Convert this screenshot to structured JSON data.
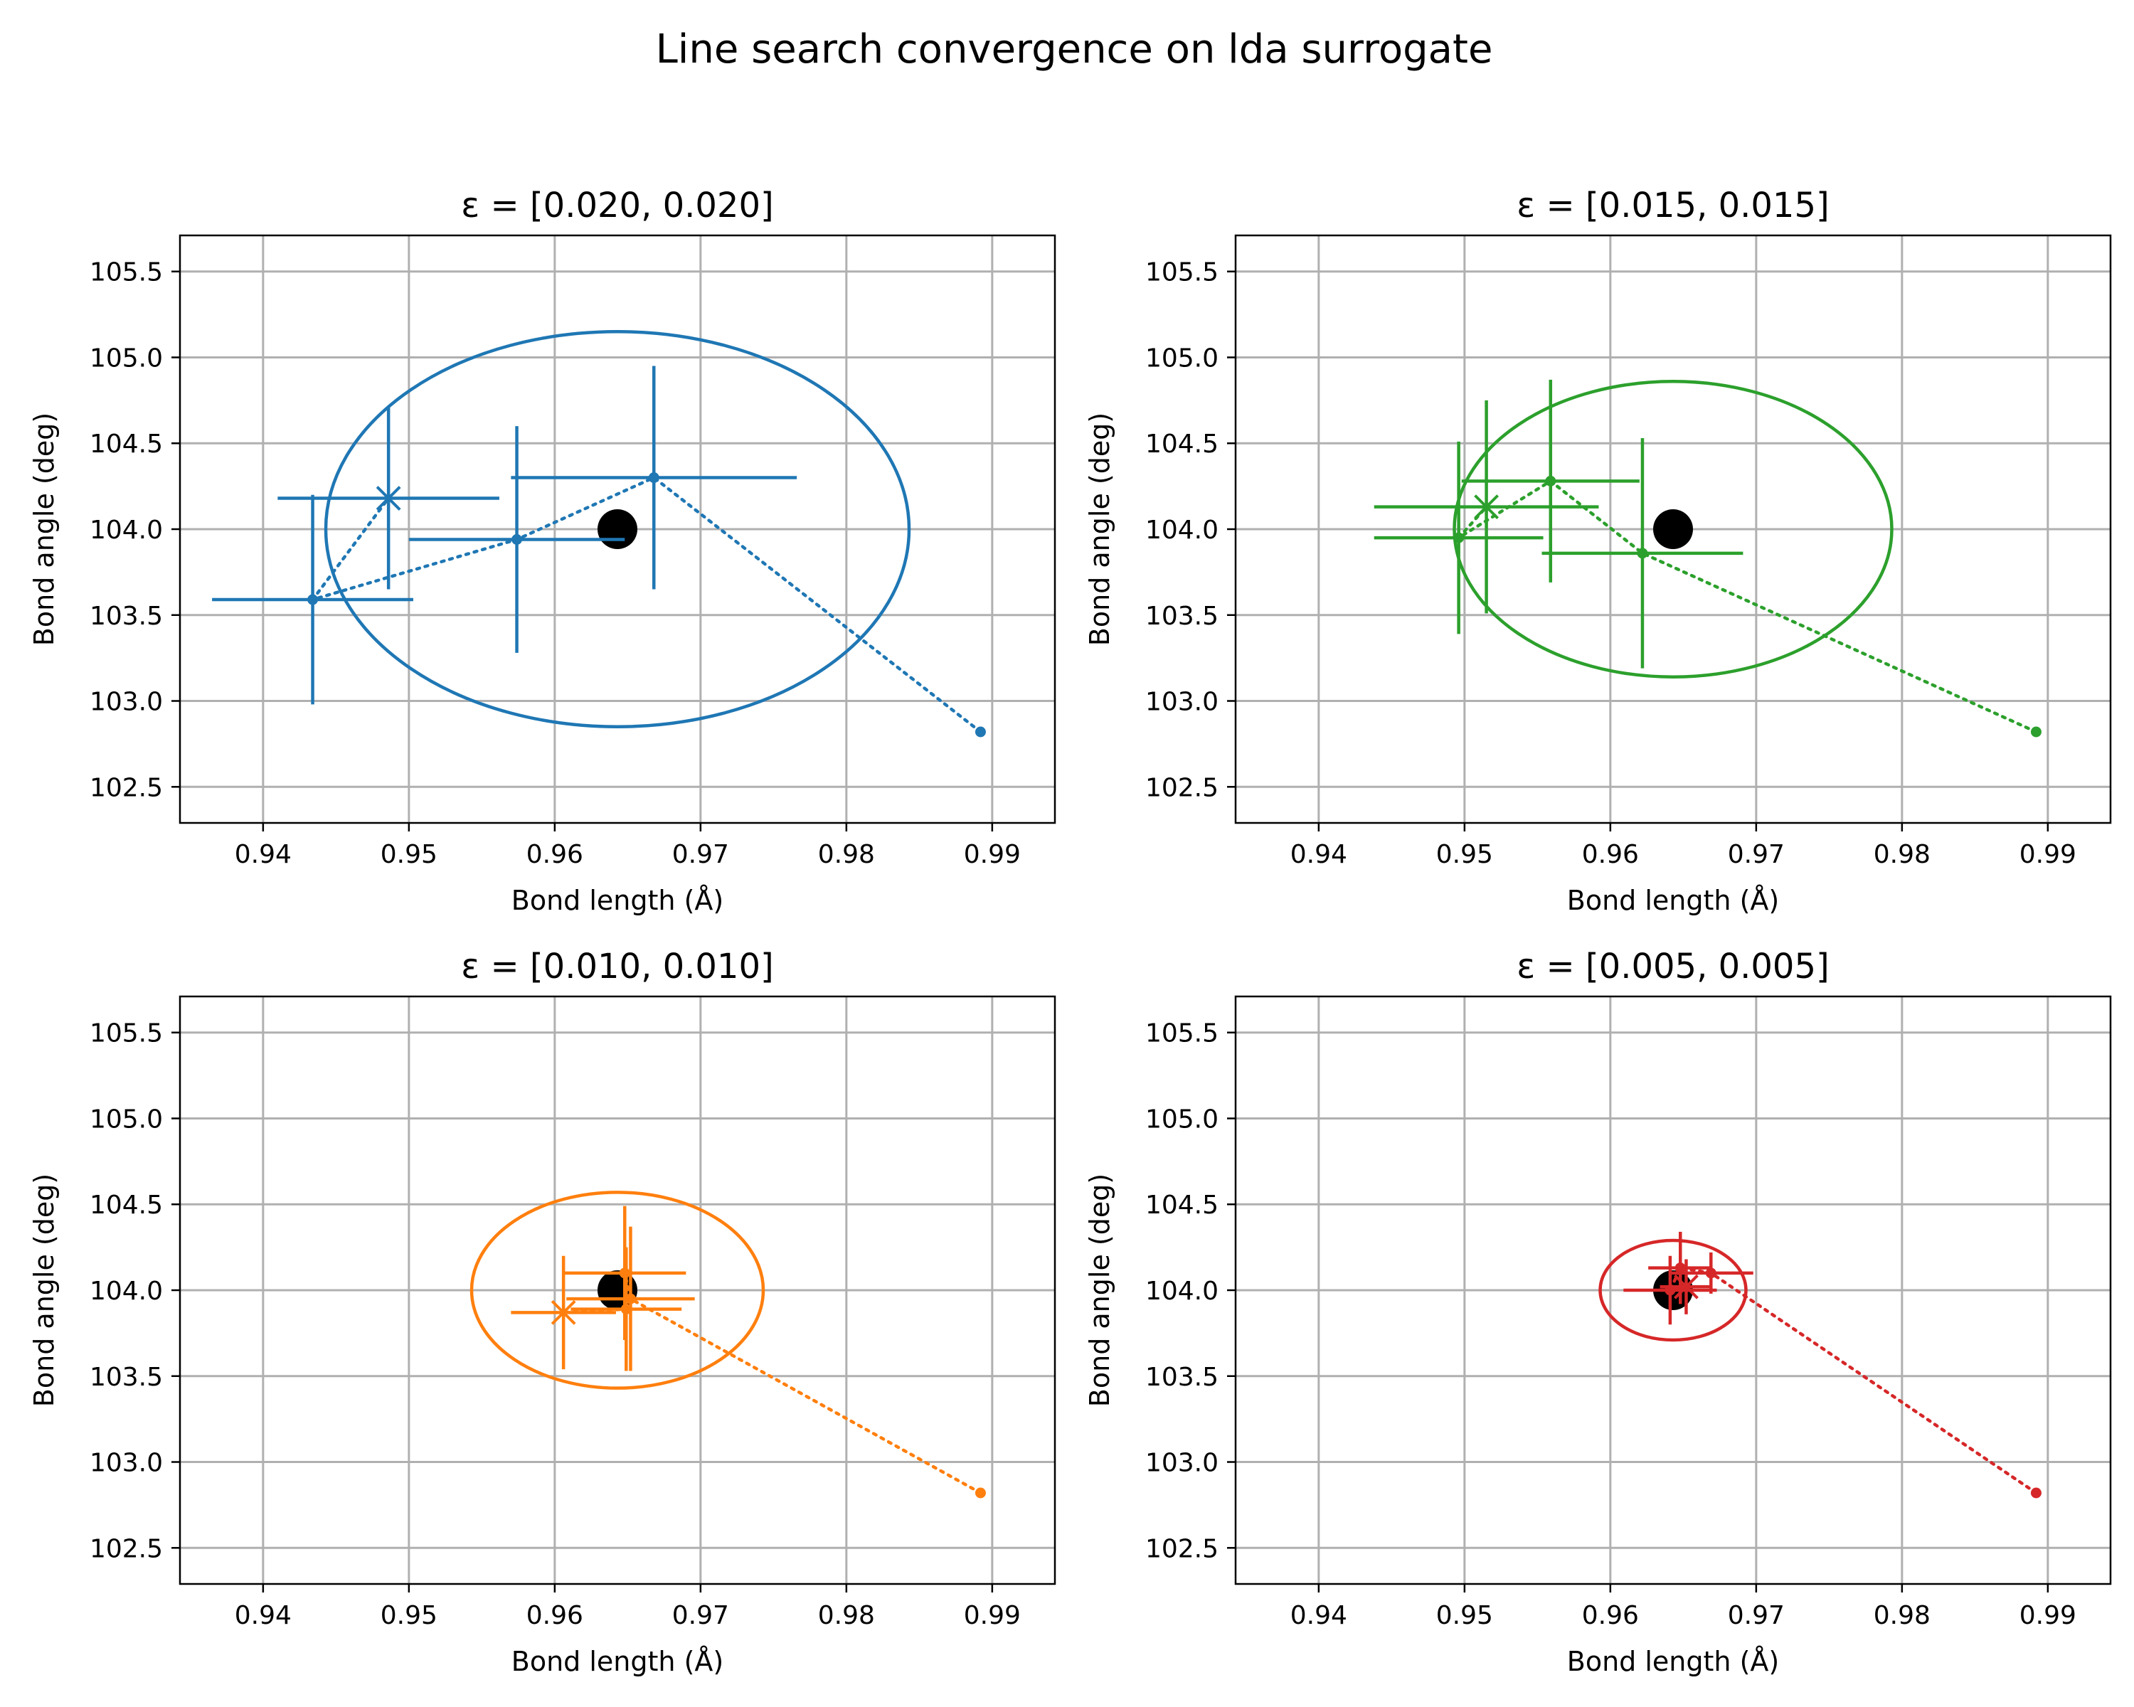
{
  "figure": {
    "suptitle": "Line search convergence on lda surrogate"
  },
  "chart_data": [
    {
      "type": "scatter",
      "title": "ε = [0.020, 0.020]",
      "xlabel": "Bond length (Å)",
      "ylabel": "Bond angle (deg)",
      "xlim": [
        0.9343,
        0.9943
      ],
      "ylim": [
        102.29,
        105.71
      ],
      "xticks": [
        0.94,
        0.95,
        0.96,
        0.97,
        0.98,
        0.99
      ],
      "xtick_labels": [
        "0.94",
        "0.95",
        "0.96",
        "0.97",
        "0.98",
        "0.99"
      ],
      "yticks": [
        102.5,
        103.0,
        103.5,
        104.0,
        104.5,
        105.0,
        105.5
      ],
      "ytick_labels": [
        "102.5",
        "103.0",
        "103.5",
        "104.0",
        "104.5",
        "105.0",
        "105.5"
      ],
      "grid": true,
      "color": "#1f77b4",
      "target": {
        "x": 0.9643,
        "y": 104.0
      },
      "ellipse": {
        "cx": 0.9643,
        "cy": 104.0,
        "rx": 0.02,
        "ry": 1.15
      },
      "path": [
        {
          "x": 0.9892,
          "y": 102.82,
          "xerr": 0,
          "yerr": 0
        },
        {
          "x": 0.9668,
          "y": 104.3,
          "xerr": 0.0098,
          "yerr": 0.65
        },
        {
          "x": 0.9574,
          "y": 103.94,
          "xerr": 0.0074,
          "yerr": 0.66
        },
        {
          "x": 0.9434,
          "y": 103.59,
          "xerr": 0.0069,
          "yerr": 0.61
        },
        {
          "x": 0.9486,
          "y": 104.18,
          "xerr": 0.0076,
          "yerr": 0.53
        }
      ]
    },
    {
      "type": "scatter",
      "title": "ε = [0.015, 0.015]",
      "xlabel": "Bond length (Å)",
      "ylabel": "Bond angle (deg)",
      "xlim": [
        0.9343,
        0.9943
      ],
      "ylim": [
        102.29,
        105.71
      ],
      "xticks": [
        0.94,
        0.95,
        0.96,
        0.97,
        0.98,
        0.99
      ],
      "xtick_labels": [
        "0.94",
        "0.95",
        "0.96",
        "0.97",
        "0.98",
        "0.99"
      ],
      "yticks": [
        102.5,
        103.0,
        103.5,
        104.0,
        104.5,
        105.0,
        105.5
      ],
      "ytick_labels": [
        "102.5",
        "103.0",
        "103.5",
        "104.0",
        "104.5",
        "105.0",
        "105.5"
      ],
      "grid": true,
      "color": "#2ca02c",
      "target": {
        "x": 0.9643,
        "y": 104.0
      },
      "ellipse": {
        "cx": 0.9643,
        "cy": 104.0,
        "rx": 0.015,
        "ry": 0.86
      },
      "path": [
        {
          "x": 0.9892,
          "y": 102.82,
          "xerr": 0,
          "yerr": 0
        },
        {
          "x": 0.9622,
          "y": 103.86,
          "xerr": 0.0069,
          "yerr": 0.67
        },
        {
          "x": 0.9559,
          "y": 104.28,
          "xerr": 0.0061,
          "yerr": 0.59
        },
        {
          "x": 0.9496,
          "y": 103.95,
          "xerr": 0.0058,
          "yerr": 0.56
        },
        {
          "x": 0.9515,
          "y": 104.13,
          "xerr": 0.0077,
          "yerr": 0.62
        }
      ]
    },
    {
      "type": "scatter",
      "title": "ε = [0.010, 0.010]",
      "xlabel": "Bond length (Å)",
      "ylabel": "Bond angle (deg)",
      "xlim": [
        0.9343,
        0.9943
      ],
      "ylim": [
        102.29,
        105.71
      ],
      "xticks": [
        0.94,
        0.95,
        0.96,
        0.97,
        0.98,
        0.99
      ],
      "xtick_labels": [
        "0.94",
        "0.95",
        "0.96",
        "0.97",
        "0.98",
        "0.99"
      ],
      "yticks": [
        102.5,
        103.0,
        103.5,
        104.0,
        104.5,
        105.0,
        105.5
      ],
      "ytick_labels": [
        "102.5",
        "103.0",
        "103.5",
        "104.0",
        "104.5",
        "105.0",
        "105.5"
      ],
      "grid": true,
      "color": "#ff7f0e",
      "target": {
        "x": 0.9643,
        "y": 104.0
      },
      "ellipse": {
        "cx": 0.9643,
        "cy": 104.0,
        "rx": 0.01,
        "ry": 0.57
      },
      "path": [
        {
          "x": 0.9892,
          "y": 102.82,
          "xerr": 0,
          "yerr": 0
        },
        {
          "x": 0.9652,
          "y": 103.95,
          "xerr": 0.0044,
          "yerr": 0.42
        },
        {
          "x": 0.9648,
          "y": 104.1,
          "xerr": 0.0042,
          "yerr": 0.39
        },
        {
          "x": 0.9649,
          "y": 103.89,
          "xerr": 0.0038,
          "yerr": 0.36
        },
        {
          "x": 0.9606,
          "y": 103.87,
          "xerr": 0.0036,
          "yerr": 0.33
        }
      ]
    },
    {
      "type": "scatter",
      "title": "ε = [0.005, 0.005]",
      "xlabel": "Bond length (Å)",
      "ylabel": "Bond angle (deg)",
      "xlim": [
        0.9343,
        0.9943
      ],
      "ylim": [
        102.29,
        105.71
      ],
      "xticks": [
        0.94,
        0.95,
        0.96,
        0.97,
        0.98,
        0.99
      ],
      "xtick_labels": [
        "0.94",
        "0.95",
        "0.96",
        "0.97",
        "0.98",
        "0.99"
      ],
      "yticks": [
        102.5,
        103.0,
        103.5,
        104.0,
        104.5,
        105.0,
        105.5
      ],
      "ytick_labels": [
        "102.5",
        "103.0",
        "103.5",
        "104.0",
        "104.5",
        "105.0",
        "105.5"
      ],
      "grid": true,
      "color": "#d62728",
      "target": {
        "x": 0.9643,
        "y": 104.0
      },
      "ellipse": {
        "cx": 0.9643,
        "cy": 104.0,
        "rx": 0.005,
        "ry": 0.29
      },
      "path": [
        {
          "x": 0.9892,
          "y": 102.82,
          "xerr": 0,
          "yerr": 0
        },
        {
          "x": 0.9669,
          "y": 104.1,
          "xerr": 0.0029,
          "yerr": 0.12
        },
        {
          "x": 0.9648,
          "y": 104.13,
          "xerr": 0.0022,
          "yerr": 0.21
        },
        {
          "x": 0.9641,
          "y": 104.0,
          "xerr": 0.0032,
          "yerr": 0.2
        },
        {
          "x": 0.9652,
          "y": 104.02,
          "xerr": 0.0018,
          "yerr": 0.16
        }
      ]
    }
  ]
}
